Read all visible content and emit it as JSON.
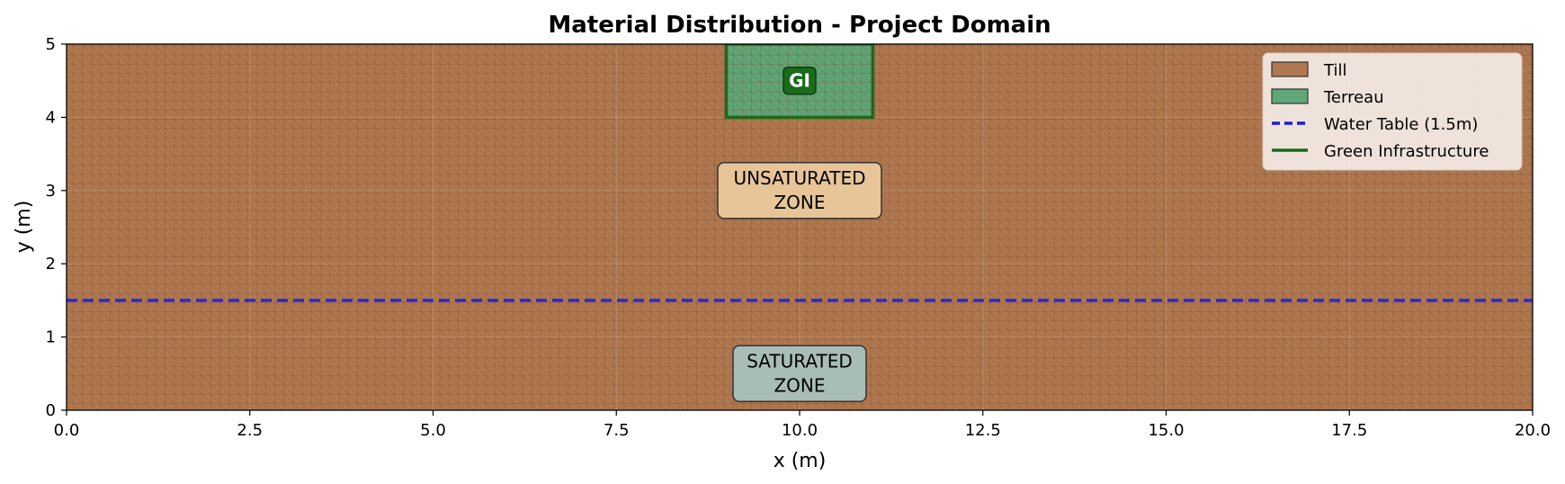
{
  "chart_data": {
    "type": "area",
    "title": "Material Distribution - Project Domain",
    "xlabel": "x (m)",
    "ylabel": "y (m)",
    "xlim": [
      0,
      20
    ],
    "ylim": [
      0,
      5
    ],
    "x_ticks": [
      "0.0",
      "2.5",
      "5.0",
      "7.5",
      "10.0",
      "12.5",
      "15.0",
      "17.5",
      "20.0"
    ],
    "x_tick_values": [
      0,
      2.5,
      5,
      7.5,
      10,
      12.5,
      15,
      17.5,
      20
    ],
    "y_ticks": [
      "0",
      "1",
      "2",
      "3",
      "4",
      "5"
    ],
    "y_tick_values": [
      0,
      1,
      2,
      3,
      4,
      5
    ],
    "grid": true,
    "legend_position": "top-right",
    "materials": [
      {
        "name": "Till",
        "color": "#b07850",
        "x": [
          0,
          20
        ],
        "y": [
          0,
          5
        ]
      },
      {
        "name": "Terreau",
        "color": "#5fa678",
        "x": [
          9,
          11
        ],
        "y": [
          4,
          5
        ]
      }
    ],
    "water_table": {
      "name": "Water Table (1.5m)",
      "y": 1.5,
      "color": "#1a1ae6",
      "style": "dashed"
    },
    "green_infrastructure": {
      "name": "Green Infrastructure",
      "x": [
        9,
        11
      ],
      "y": [
        4,
        5
      ],
      "color": "#1a6b1a"
    },
    "annotations": [
      {
        "id": "gi",
        "text": "GI",
        "x": 10,
        "y": 4.5
      },
      {
        "id": "unsat",
        "line1": "UNSATURATED",
        "line2": "ZONE",
        "x": 10,
        "y": 3.0
      },
      {
        "id": "sat",
        "line1": "SATURATED",
        "line2": "ZONE",
        "x": 10,
        "y": 0.5
      }
    ],
    "legend": [
      "Till",
      "Terreau",
      "Water Table (1.5m)",
      "Green Infrastructure"
    ]
  }
}
